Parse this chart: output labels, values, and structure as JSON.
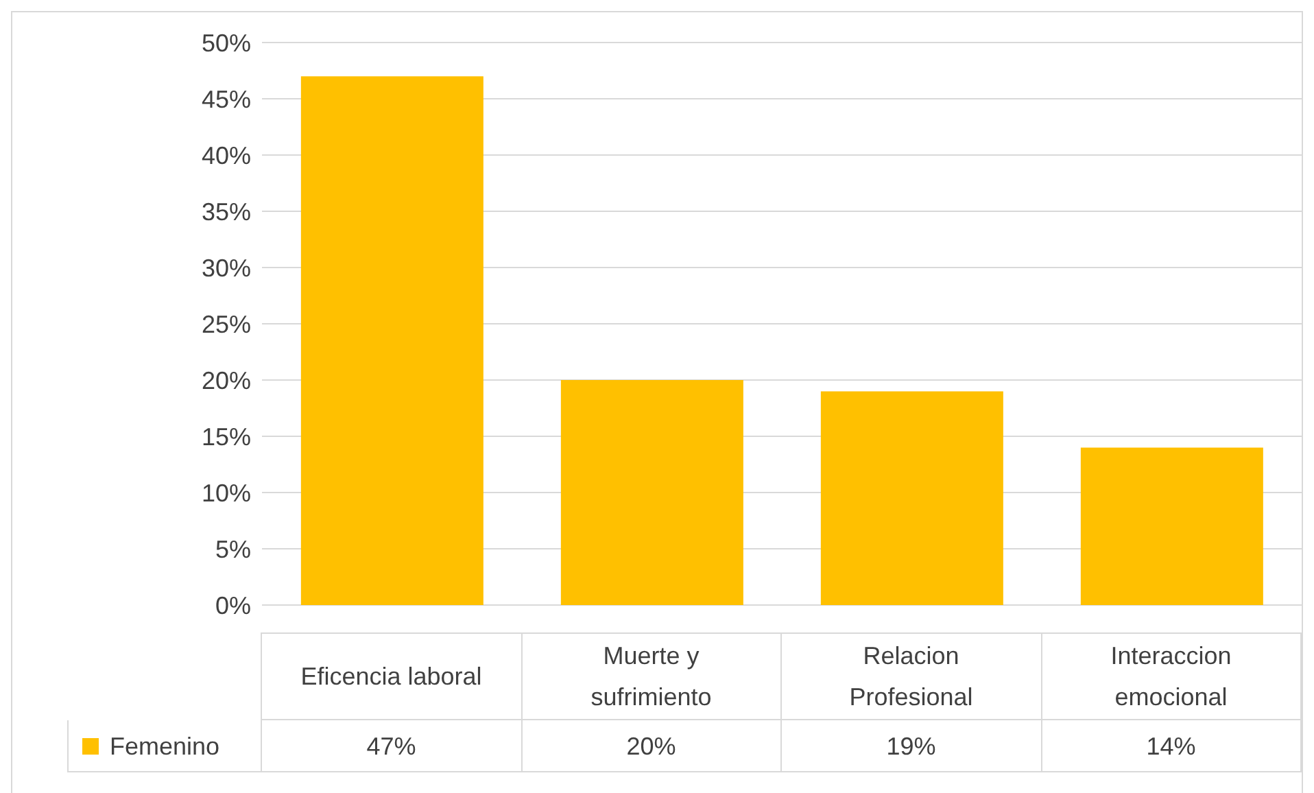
{
  "chart_data": {
    "type": "bar",
    "categories": [
      "Eficencia laboral",
      "Muerte y sufrimiento",
      "Relacion Profesional",
      "Interaccion emocional"
    ],
    "series": [
      {
        "name": "Femenino",
        "color": "#ffc000",
        "values": [
          47,
          20,
          19,
          14
        ],
        "value_labels": [
          "47%",
          "20%",
          "19%",
          "14%"
        ]
      }
    ],
    "ylim": [
      0,
      50
    ],
    "yticks": [
      {
        "value": 0,
        "label": "0%"
      },
      {
        "value": 5,
        "label": "5%"
      },
      {
        "value": 10,
        "label": "10%"
      },
      {
        "value": 15,
        "label": "15%"
      },
      {
        "value": 20,
        "label": "20%"
      },
      {
        "value": 25,
        "label": "25%"
      },
      {
        "value": 30,
        "label": "30%"
      },
      {
        "value": 35,
        "label": "35%"
      },
      {
        "value": 40,
        "label": "40%"
      },
      {
        "value": 45,
        "label": "45%"
      },
      {
        "value": 50,
        "label": "50%"
      }
    ],
    "grid": "y",
    "legend": "bottom"
  }
}
